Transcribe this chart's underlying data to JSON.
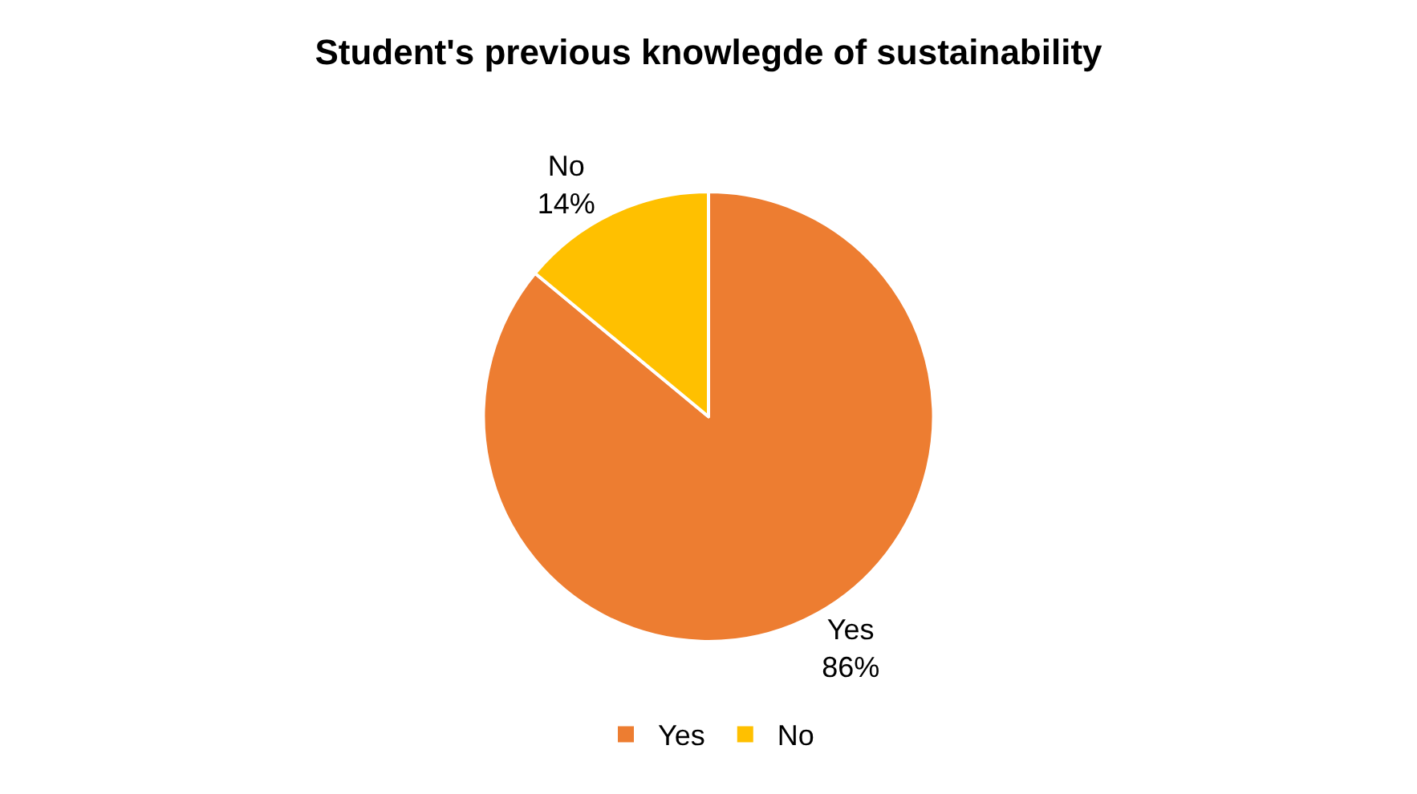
{
  "chart_data": {
    "type": "pie",
    "title": "Student's previous knowlegde of sustainability",
    "categories": [
      "Yes",
      "No"
    ],
    "values": [
      86,
      14
    ],
    "colors": [
      "#ed7d31",
      "#ffc000"
    ],
    "value_labels": [
      "86%",
      "14%"
    ],
    "legend": "bottom"
  }
}
